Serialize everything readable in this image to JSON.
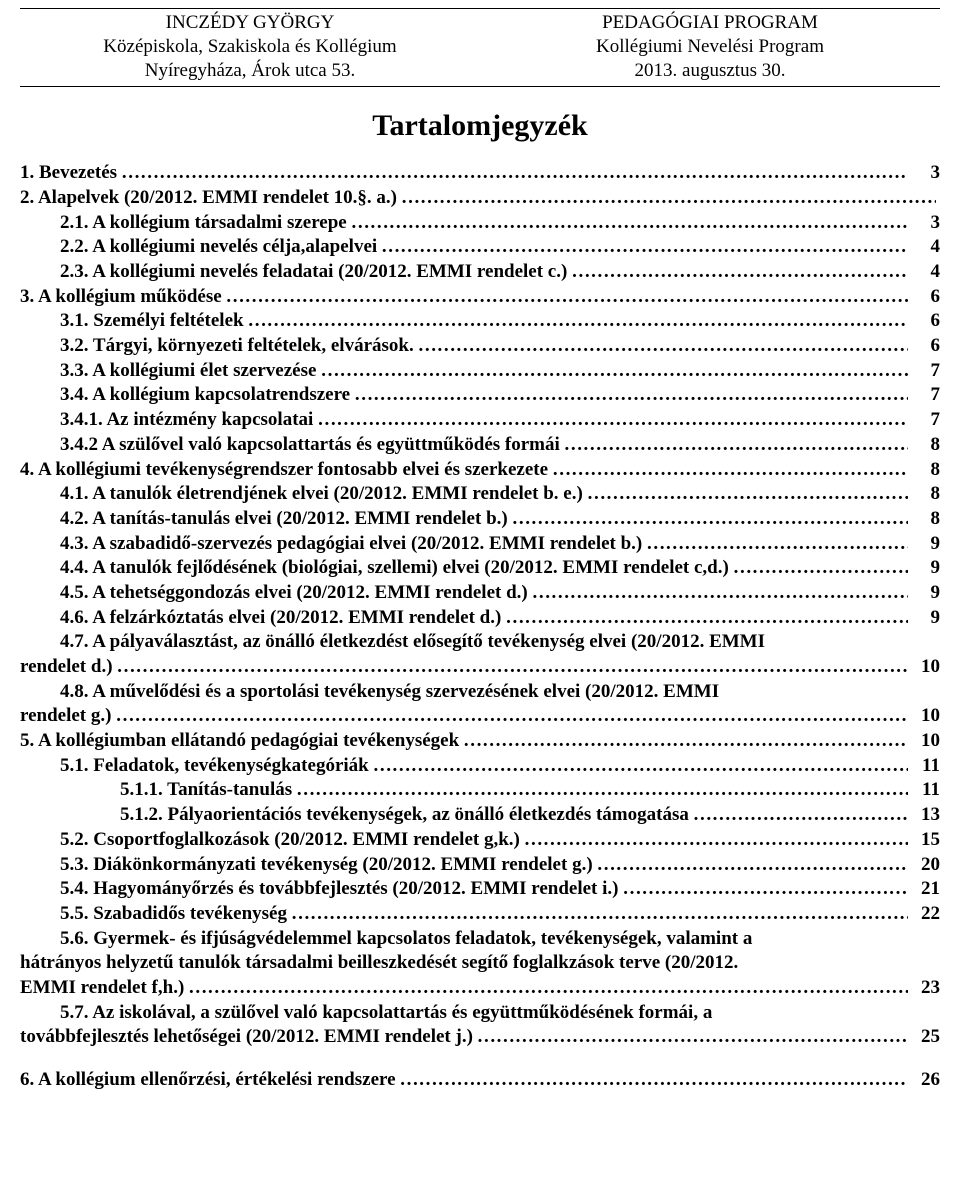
{
  "header": {
    "left": {
      "l1": "INCZÉDY GYÖRGY",
      "l2": "Középiskola, Szakiskola és Kollégium",
      "l3": "Nyíregyháza, Árok utca 53."
    },
    "right": {
      "l1": "PEDAGÓGIAI PROGRAM",
      "l2": "Kollégiumi Nevelési Program",
      "l3": "2013. augusztus 30."
    }
  },
  "title": "Tartalomjegyzék",
  "toc": [
    {
      "indent": 0,
      "label": "1. Bevezetés",
      "page": "3"
    },
    {
      "indent": 0,
      "label": "2. Alapelvek (20/2012. EMMI rendelet 10.§. a.)",
      "page": ""
    },
    {
      "indent": 1,
      "label": "2.1. A kollégium társadalmi szerepe",
      "page": "3"
    },
    {
      "indent": 1,
      "label": "2.2. A kollégiumi nevelés célja,alapelvei",
      "page": "4"
    },
    {
      "indent": 1,
      "label": "2.3. A kollégiumi nevelés feladatai (20/2012. EMMI rendelet c.)",
      "page": "4"
    },
    {
      "indent": 0,
      "label": "3. A kollégium működése",
      "page": "6"
    },
    {
      "indent": 1,
      "label": "3.1. Személyi feltételek",
      "page": "6"
    },
    {
      "indent": 1,
      "label": "3.2. Tárgyi, környezeti feltételek, elvárások.",
      "page": "6"
    },
    {
      "indent": 1,
      "label": "3.3. A kollégiumi élet szervezése",
      "page": "7"
    },
    {
      "indent": 1,
      "label": "3.4. A kollégium kapcsolatrendszere",
      "page": "7"
    },
    {
      "indent": 1,
      "label": "3.4.1. Az intézmény kapcsolatai",
      "page": "7"
    },
    {
      "indent": 1,
      "label": "3.4.2  A szülővel való kapcsolattartás és együttműködés formái",
      "page": "8"
    },
    {
      "indent": 0,
      "label": "4. A kollégiumi tevékenységrendszer fontosabb elvei és szerkezete",
      "page": "8"
    },
    {
      "indent": 1,
      "label": "4.1. A tanulók életrendjének elvei (20/2012. EMMI rendelet b. e.)",
      "page": "8"
    },
    {
      "indent": 1,
      "label": "4.2. A tanítás-tanulás elvei (20/2012. EMMI rendelet b.)",
      "page": "8"
    },
    {
      "indent": 1,
      "label": "4.3. A szabadidő-szervezés pedagógiai elvei (20/2012. EMMI rendelet b.)",
      "page": "9"
    },
    {
      "indent": 1,
      "label": "4.4. A tanulók fejlődésének (biológiai, szellemi) elvei (20/2012. EMMI rendelet c,d.)",
      "page": "9"
    },
    {
      "indent": 1,
      "label": "4.5. A tehetséggondozás elvei (20/2012. EMMI rendelet d.)",
      "page": "9"
    },
    {
      "indent": 1,
      "label": "4.6. A felzárkóztatás elvei (20/2012. EMMI rendelet d.)",
      "page": "9"
    },
    {
      "indent": 1,
      "wrap": true,
      "label": "4.7. A pályaválasztást, az önálló életkezdést elősegítő tevékenység elvei (20/2012. EMMI",
      "cont": "rendelet d.)",
      "page": "10"
    },
    {
      "indent": 1,
      "wrap": true,
      "label": "4.8. A művelődési és a sportolási tevékenység szervezésének elvei (20/2012. EMMI",
      "cont": "rendelet g.)",
      "page": "10"
    },
    {
      "indent": 0,
      "label": "5. A kollégiumban ellátandó pedagógiai tevékenységek",
      "page": "10"
    },
    {
      "indent": 1,
      "label": "5.1. Feladatok, tevékenységkategóriák",
      "page": "11"
    },
    {
      "indent": 2,
      "label": "5.1.1. Tanítás-tanulás",
      "page": "11"
    },
    {
      "indent": 2,
      "label": "5.1.2. Pályaorientációs tevékenységek, az önálló életkezdés támogatása",
      "page": "13"
    },
    {
      "indent": 1,
      "label": "5.2. Csoportfoglalkozások (20/2012. EMMI rendelet g,k.)",
      "page": "15"
    },
    {
      "indent": 1,
      "label": "5.3. Diákönkormányzati tevékenység (20/2012. EMMI rendelet g.)",
      "page": "20"
    },
    {
      "indent": 1,
      "label": "5.4. Hagyományőrzés és továbbfejlesztés (20/2012. EMMI rendelet i.)",
      "page": "21"
    },
    {
      "indent": 1,
      "label": "5.5. Szabadidős tevékenység",
      "page": "22"
    },
    {
      "indent": 1,
      "wrap": true,
      "label": "5.6. Gyermek- és ifjúságvédelemmel kapcsolatos feladatok, tevékenységek, valamint a",
      "cont": "hátrányos helyzetű tanulók társadalmi beilleszkedését segítő foglalkzások terve (20/2012.",
      "cont2": "EMMI rendelet f,h.)",
      "page": "23"
    },
    {
      "indent": 1,
      "wrap": true,
      "label": "5.7. Az iskolával, a szülővel való kapcsolattartás és együttműködésének formái, a",
      "cont": "továbbfejlesztés lehetőségei (20/2012. EMMI rendelet j.)",
      "page": "25"
    },
    {
      "spacer": true
    },
    {
      "indent": 0,
      "label": "6. A kollégium ellenőrzési, értékelési rendszere",
      "page": "26"
    }
  ]
}
